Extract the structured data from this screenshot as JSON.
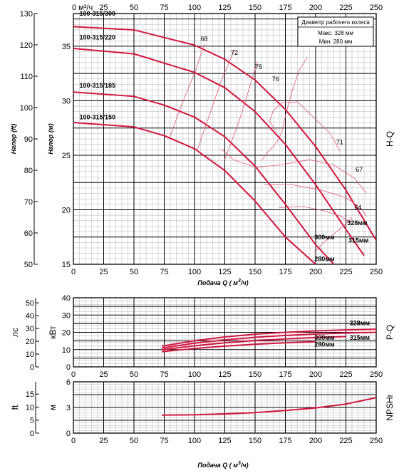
{
  "chart_data": [
    {
      "type": "line",
      "panel": "H-Q",
      "side_label": "H-Q",
      "xlabel_top": "м³/ч",
      "xlabel_prefix": "Подача Q (",
      "xlabel_unit": "м",
      "xlabel_sup": "3",
      "xlabel_suffix": "/ч)",
      "ylabel": "Напор (м)",
      "ylabel2": "Напор (ft)",
      "xlim": [
        0,
        250
      ],
      "ylim": [
        15,
        38
      ],
      "ylim2": [
        50,
        130
      ],
      "xticks": [
        0,
        25,
        50,
        75,
        100,
        125,
        150,
        175,
        200,
        225,
        250
      ],
      "yticks": [
        15,
        20,
        25,
        30,
        35
      ],
      "yticks2": [
        50,
        60,
        70,
        80,
        90,
        100,
        110,
        120,
        130
      ],
      "legend": {
        "title": "Диаметр рабочего колеса",
        "max": "Макс. 328 мм",
        "min": "Мин.  280  мм",
        "position": "top-right"
      },
      "series": [
        {
          "name": "100-315/300",
          "label_x": 5,
          "label_y": 37.8,
          "x": [
            0,
            50,
            100,
            125,
            150,
            175,
            200,
            225,
            250
          ],
          "y": [
            36.8,
            36.5,
            35.1,
            33.8,
            31.9,
            29.2,
            25.8,
            21.8,
            17.2
          ]
        },
        {
          "name": "100-315/220",
          "label_x": 5,
          "label_y": 35.6,
          "x": [
            0,
            50,
            100,
            125,
            150,
            175,
            200,
            225,
            240
          ],
          "y": [
            34.8,
            34.3,
            32.6,
            31.2,
            29.0,
            26.0,
            22.3,
            18.2,
            15.8
          ]
        },
        {
          "name": "100-315/185",
          "label_x": 5,
          "label_y": 31.2,
          "x": [
            0,
            50,
            75,
            100,
            125,
            150,
            175,
            200,
            215
          ],
          "y": [
            30.8,
            30.4,
            29.6,
            28.5,
            26.7,
            24.0,
            20.5,
            16.8,
            15.0
          ]
        },
        {
          "name": "100-315/150",
          "label_x": 5,
          "label_y": 28.3,
          "x": [
            0,
            50,
            75,
            100,
            125,
            150,
            175,
            200
          ],
          "y": [
            28.0,
            27.6,
            26.8,
            25.6,
            23.6,
            20.8,
            17.5,
            15.0
          ]
        }
      ],
      "end_labels": [
        {
          "text": "328мм",
          "x": 226,
          "y": 18.6
        },
        {
          "text": "315мм",
          "x": 227,
          "y": 17.0
        },
        {
          "text": "300мм",
          "x": 199,
          "y": 17.3
        },
        {
          "text": "280мм",
          "x": 199,
          "y": 15.3
        }
      ],
      "efficiency_labels": [
        {
          "text": "68",
          "x": 105,
          "y": 35.5
        },
        {
          "text": "72",
          "x": 130,
          "y": 34.2
        },
        {
          "text": "75",
          "x": 150,
          "y": 32.9
        },
        {
          "text": "76",
          "x": 164,
          "y": 31.8
        },
        {
          "text": "71",
          "x": 217,
          "y": 26.0
        },
        {
          "text": "67",
          "x": 233,
          "y": 23.5
        },
        {
          "text": "64",
          "x": 232,
          "y": 20.0
        }
      ],
      "efficiency_curves": [
        {
          "x": [
            79,
            90,
            101,
            108
          ],
          "y": [
            26.5,
            29.8,
            32.8,
            35.2
          ]
        },
        {
          "x": [
            102,
            112,
            122,
            133
          ],
          "y": [
            25.4,
            28.6,
            31.8,
            34.7
          ]
        },
        {
          "x": [
            125,
            137,
            152
          ],
          "y": [
            24.6,
            28.2,
            33.6
          ]
        },
        {
          "x": [
            156,
            159,
            168,
            172,
            175,
            180,
            186,
            193
          ],
          "y": [
            24.6,
            25.1,
            26.2,
            27.1,
            28.6,
            30.7,
            32.7,
            34.0
          ]
        },
        {
          "x": [
            168,
            162,
            165,
            172,
            185,
            200,
            212,
            220
          ],
          "y": [
            27.1,
            28.1,
            29.1,
            29.8,
            29.9,
            28.3,
            27.0,
            25.4
          ]
        },
        {
          "x": [
            122,
            132,
            150,
            170,
            195,
            215,
            232,
            242
          ],
          "y": [
            25.6,
            24.6,
            23.9,
            24.1,
            24.6,
            24.1,
            22.9,
            21.5
          ]
        },
        {
          "x": [
            157,
            180,
            205,
            225,
            237,
            242
          ],
          "y": [
            22.3,
            22.3,
            21.8,
            21.1,
            20.2,
            19.4
          ]
        },
        {
          "x": [
            170,
            190,
            207,
            221,
            229
          ],
          "y": [
            20.2,
            20.3,
            19.9,
            19.4,
            18.8
          ]
        },
        {
          "x": [
            199,
            205,
            214,
            223,
            230
          ],
          "y": [
            16.1,
            16.8,
            17.7,
            18.5,
            19.3
          ]
        }
      ]
    },
    {
      "type": "line",
      "panel": "P-Q",
      "side_label": "P-Q",
      "ylabel": "кВт",
      "ylabel2": "лс",
      "xlim": [
        0,
        250
      ],
      "ylim": [
        0,
        40
      ],
      "ylim2": [
        0,
        54
      ],
      "xticks": [
        0,
        25,
        50,
        75,
        100,
        125,
        150,
        175,
        200,
        225,
        250
      ],
      "yticks": [
        0,
        10,
        20,
        30,
        40
      ],
      "yticks2": [
        0,
        10,
        20,
        30,
        40,
        50
      ],
      "series": [
        {
          "name": "328мм",
          "label_x": 228,
          "label_y": 24.2,
          "x": [
            73,
            100,
            125,
            150,
            175,
            200,
            225,
            250
          ],
          "y": [
            12.0,
            15.1,
            17.3,
            18.9,
            20.0,
            20.8,
            21.4,
            21.8
          ]
        },
        {
          "name": "315мм",
          "label_x": 228,
          "label_y": 15.7,
          "x": [
            73,
            100,
            125,
            150,
            175,
            200,
            225,
            250
          ],
          "y": [
            10.9,
            13.7,
            15.6,
            17.1,
            18.2,
            19.0,
            19.6,
            20.0
          ]
        },
        {
          "name": "300мм",
          "label_x": 199,
          "label_y": 15.7,
          "x": [
            73,
            100,
            125,
            150,
            175,
            200,
            225
          ],
          "y": [
            9.9,
            12.2,
            13.9,
            15.2,
            16.2,
            17.0,
            17.5
          ]
        },
        {
          "name": "280мм",
          "label_x": 199,
          "label_y": 11.7,
          "x": [
            73,
            100,
            125,
            150,
            175,
            200
          ],
          "y": [
            8.8,
            10.6,
            12.0,
            13.1,
            13.9,
            14.6
          ]
        }
      ]
    },
    {
      "type": "line",
      "panel": "NPSHr",
      "side_label": "NPSHr",
      "ylabel": "м",
      "ylabel2": "ft",
      "xlabel_prefix": "Подача Q (",
      "xlabel_unit": "м",
      "xlabel_sup": "3",
      "xlabel_suffix": "/ч)",
      "xlim": [
        0,
        250
      ],
      "ylim": [
        0,
        6
      ],
      "ylim2": [
        0,
        19.7
      ],
      "xticks": [
        0,
        25,
        50,
        75,
        100,
        125,
        150,
        175,
        200,
        225,
        250
      ],
      "yticks": [
        0,
        3,
        6
      ],
      "yticks2": [
        0,
        5,
        10,
        15
      ],
      "series": [
        {
          "name": "",
          "x": [
            73,
            100,
            125,
            150,
            175,
            200,
            225,
            250
          ],
          "y": [
            2.1,
            2.15,
            2.25,
            2.4,
            2.65,
            2.95,
            3.4,
            4.15
          ]
        }
      ]
    }
  ],
  "colors": {
    "curve": "#d2153f",
    "grid_major": "#000000",
    "grid_minor": "#b3b3b3",
    "efficiency": "#e05870"
  }
}
